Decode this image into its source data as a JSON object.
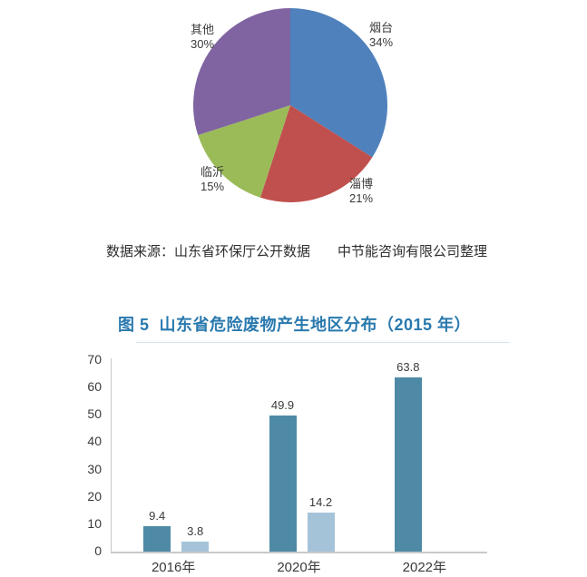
{
  "page": {
    "source_note": {
      "left": "数据来源：山东省环保厅公开数据",
      "right": "中节能咨询有限公司整理"
    },
    "figure_title": "图 5  山东省危险废物产生地区分布（2015 年）"
  },
  "colors": {
    "title_blue": "#2979AE",
    "axis_gray": "#C6C6C6",
    "text_dark": "#3A3A3A"
  },
  "chart_data": [
    {
      "type": "pie",
      "labels": [
        "烟台",
        "淄博",
        "临沂",
        "其他"
      ],
      "values": [
        34,
        21,
        15,
        30
      ],
      "percent_labels": [
        "34%",
        "21%",
        "15%",
        "30%"
      ],
      "colors": [
        "#4F81BD",
        "#C0504D",
        "#9BBB59",
        "#8064A2"
      ],
      "start_angle_deg": 0,
      "direction": "clockwise-from-top",
      "legend_position": "none"
    },
    {
      "type": "bar",
      "title": "图 5  山东省危险废物产生地区分布（2015 年）",
      "categories": [
        "2016年",
        "2020年",
        "2022年"
      ],
      "series": [
        {
          "name": "series-1-dark",
          "color": "#4E8AA5",
          "values": [
            9.4,
            49.9,
            63.8
          ]
        },
        {
          "name": "series-2-light",
          "color": "#A5C3D8",
          "values": [
            3.8,
            14.2,
            null
          ]
        }
      ],
      "value_labels": [
        [
          "9.4",
          "49.9",
          "63.8"
        ],
        [
          "3.8",
          "14.2",
          ""
        ]
      ],
      "ylim": [
        0,
        70
      ],
      "ytick_step": 10,
      "yticks": [
        0,
        10,
        20,
        30,
        40,
        50,
        60,
        70
      ],
      "grid": false,
      "legend_position": "none"
    }
  ]
}
